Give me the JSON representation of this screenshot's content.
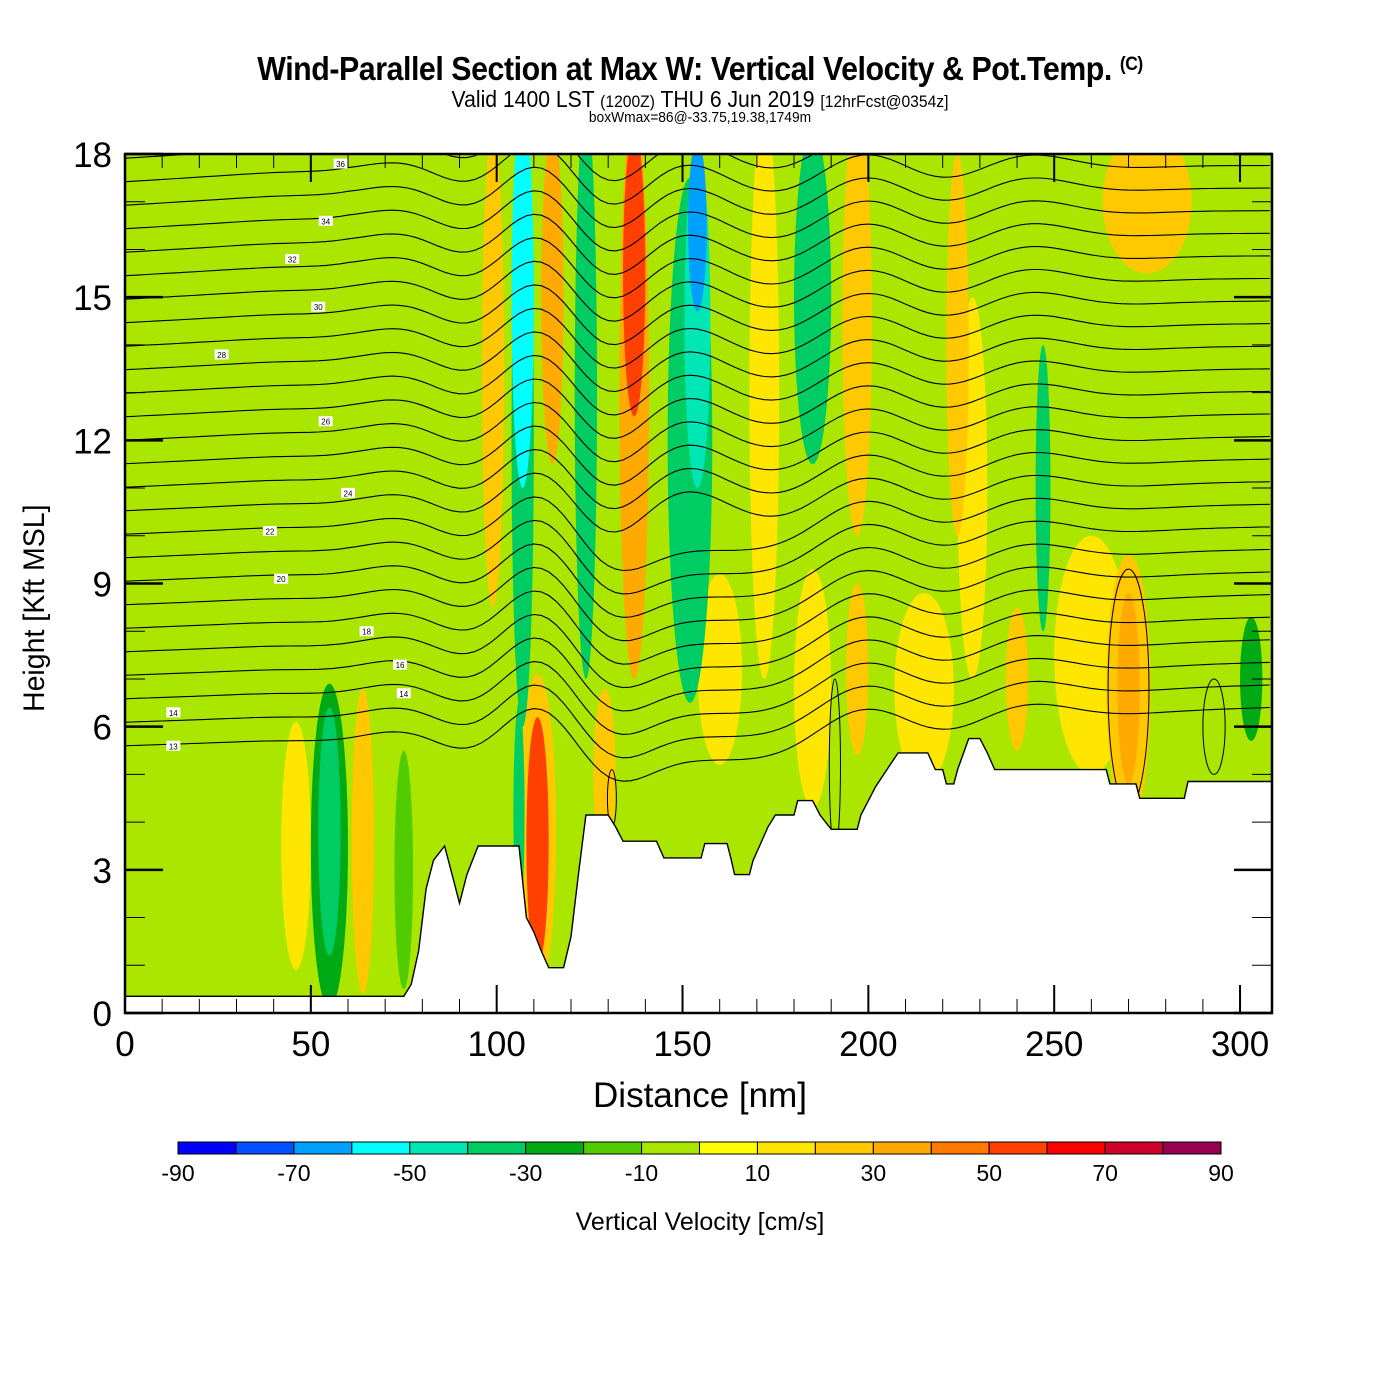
{
  "header": {
    "title": "Wind-Parallel Section at Max W: Vertical Velocity & Pot.Temp.",
    "copyright": "(C)",
    "valid_prefix": "Valid 1400 LST",
    "valid_utc": "(1200Z)",
    "valid_date": "THU 6 Jun 2019",
    "forecast": "[12hrFcst@0354z]",
    "box_info": "boxWmax=86@-33.75,19.38,1749m"
  },
  "chart_data": {
    "type": "heatmap",
    "title": "Wind-Parallel Section at Max W: Vertical Velocity & Pot.Temp.",
    "xlabel": "Distance [nm]",
    "ylabel": "Height [Kft MSL]",
    "xlim": [
      0,
      308.6
    ],
    "ylim": [
      0,
      18
    ],
    "x_ticks": [
      0,
      50,
      100,
      150,
      200,
      250,
      300
    ],
    "y_ticks": [
      0,
      3,
      6,
      9,
      12,
      15,
      18
    ],
    "colorbar": {
      "label": "Vertical Velocity [cm/s]",
      "ticks": [
        -90,
        -70,
        -50,
        -30,
        -10,
        10,
        30,
        50,
        70,
        90
      ],
      "bounds": [
        -90,
        -80,
        -70,
        -60,
        -50,
        -40,
        -30,
        -20,
        -10,
        0,
        10,
        20,
        30,
        40,
        50,
        60,
        70,
        80,
        90
      ],
      "colors": [
        "#0000ff",
        "#0050ff",
        "#00a0ff",
        "#00ffff",
        "#00e6b4",
        "#00cc64",
        "#00aa14",
        "#50cc00",
        "#aae600",
        "#ffff00",
        "#ffe600",
        "#ffc800",
        "#ffaa00",
        "#ff7800",
        "#ff4000",
        "#ff0000",
        "#cc0028",
        "#960050"
      ]
    },
    "background_w": -5,
    "w_features": [
      {
        "x": 55,
        "y": 3.8,
        "rx": 3,
        "ry": 2.6,
        "w": -35
      },
      {
        "x": 55,
        "y": 3.5,
        "rx": 5,
        "ry": 3.4,
        "w": -25
      },
      {
        "x": 64,
        "y": 3.6,
        "rx": 3,
        "ry": 3.2,
        "w": 25
      },
      {
        "x": 46,
        "y": 3.5,
        "rx": 4,
        "ry": 2.6,
        "w": 12
      },
      {
        "x": 75,
        "y": 3.0,
        "rx": 2.5,
        "ry": 2.5,
        "w": -15
      },
      {
        "x": 111,
        "y": 3.6,
        "rx": 3,
        "ry": 2.6,
        "w": 55
      },
      {
        "x": 111,
        "y": 3.8,
        "rx": 5,
        "ry": 3.3,
        "w": 25
      },
      {
        "x": 106,
        "y": 4.2,
        "rx": 1.5,
        "ry": 2.3,
        "w": -35
      },
      {
        "x": 129,
        "y": 5.0,
        "rx": 3,
        "ry": 1.8,
        "w": 25
      },
      {
        "x": 107,
        "y": 15.0,
        "rx": 3,
        "ry": 4.0,
        "w": -55
      },
      {
        "x": 107,
        "y": 12.0,
        "rx": 3,
        "ry": 6.0,
        "w": -35
      },
      {
        "x": 99,
        "y": 13.5,
        "rx": 3,
        "ry": 5.0,
        "w": 25
      },
      {
        "x": 115,
        "y": 15.0,
        "rx": 3,
        "ry": 3.5,
        "w": 35
      },
      {
        "x": 124,
        "y": 13.0,
        "rx": 3,
        "ry": 6.0,
        "w": -35
      },
      {
        "x": 137,
        "y": 15.5,
        "rx": 3,
        "ry": 3.0,
        "w": 55
      },
      {
        "x": 137,
        "y": 13.0,
        "rx": 4,
        "ry": 6.0,
        "w": 35
      },
      {
        "x": 154,
        "y": 16.5,
        "rx": 2.5,
        "ry": 1.8,
        "w": -65
      },
      {
        "x": 154,
        "y": 14.5,
        "rx": 3.5,
        "ry": 3.5,
        "w": -50
      },
      {
        "x": 152,
        "y": 12.0,
        "rx": 6,
        "ry": 5.5,
        "w": -35
      },
      {
        "x": 172,
        "y": 13.0,
        "rx": 4,
        "ry": 6.0,
        "w": 12
      },
      {
        "x": 185,
        "y": 15.0,
        "rx": 5,
        "ry": 3.5,
        "w": -35
      },
      {
        "x": 197,
        "y": 14.5,
        "rx": 4,
        "ry": 4.5,
        "w": 25
      },
      {
        "x": 224,
        "y": 14.0,
        "rx": 3,
        "ry": 4.0,
        "w": 25
      },
      {
        "x": 228,
        "y": 11.0,
        "rx": 4,
        "ry": 4.0,
        "w": 12
      },
      {
        "x": 247,
        "y": 11.0,
        "rx": 2,
        "ry": 3.0,
        "w": -35
      },
      {
        "x": 275,
        "y": 17.0,
        "rx": 12,
        "ry": 1.5,
        "w": 25
      },
      {
        "x": 270,
        "y": 6.8,
        "rx": 3,
        "ry": 2.0,
        "w": 35
      },
      {
        "x": 270,
        "y": 6.8,
        "rx": 6,
        "ry": 2.8,
        "w": 20
      },
      {
        "x": 240,
        "y": 7.0,
        "rx": 3,
        "ry": 1.5,
        "w": 20
      },
      {
        "x": 197,
        "y": 7.2,
        "rx": 3,
        "ry": 1.8,
        "w": 20
      },
      {
        "x": 303,
        "y": 7.0,
        "rx": 3,
        "ry": 1.3,
        "w": -25
      },
      {
        "x": 185,
        "y": 6.8,
        "rx": 5,
        "ry": 2.5,
        "w": 12
      },
      {
        "x": 215,
        "y": 6.8,
        "rx": 8,
        "ry": 2.0,
        "w": 12
      },
      {
        "x": 260,
        "y": 7.5,
        "rx": 10,
        "ry": 2.5,
        "w": 12
      },
      {
        "x": 160,
        "y": 7.2,
        "rx": 6,
        "ry": 2.0,
        "w": 12
      }
    ],
    "theta_contours": {
      "label_values": [
        36,
        34,
        32,
        30,
        28,
        26,
        24,
        22,
        20,
        18,
        16,
        14,
        14,
        13
      ],
      "levels": [
        13,
        14,
        15,
        16,
        17,
        18,
        19,
        20,
        21,
        22,
        23,
        24,
        25,
        26,
        27,
        28,
        29,
        30,
        31,
        32,
        33,
        34,
        35,
        36,
        37,
        38
      ]
    },
    "terrain": [
      [
        0,
        0.35
      ],
      [
        75,
        0.35
      ],
      [
        77,
        0.6
      ],
      [
        79,
        1.3
      ],
      [
        81,
        2.6
      ],
      [
        83,
        3.2
      ],
      [
        86,
        3.5
      ],
      [
        88,
        2.9
      ],
      [
        90,
        2.3
      ],
      [
        92,
        2.9
      ],
      [
        95,
        3.5
      ],
      [
        106,
        3.5
      ],
      [
        108,
        2.0
      ],
      [
        110,
        1.7
      ],
      [
        112,
        1.3
      ],
      [
        114,
        0.95
      ],
      [
        118,
        0.95
      ],
      [
        120,
        1.6
      ],
      [
        122,
        2.9
      ],
      [
        124,
        4.15
      ],
      [
        130,
        4.15
      ],
      [
        132,
        3.9
      ],
      [
        134,
        3.6
      ],
      [
        143,
        3.6
      ],
      [
        145,
        3.25
      ],
      [
        155,
        3.25
      ],
      [
        156,
        3.55
      ],
      [
        162,
        3.55
      ],
      [
        163,
        3.25
      ],
      [
        164,
        2.9
      ],
      [
        168,
        2.9
      ],
      [
        169,
        3.2
      ],
      [
        171,
        3.55
      ],
      [
        173,
        3.9
      ],
      [
        175,
        4.15
      ],
      [
        180,
        4.15
      ],
      [
        181,
        4.45
      ],
      [
        185,
        4.45
      ],
      [
        187,
        4.15
      ],
      [
        190,
        3.85
      ],
      [
        197,
        3.85
      ],
      [
        198,
        4.15
      ],
      [
        200,
        4.45
      ],
      [
        202,
        4.75
      ],
      [
        205,
        5.1
      ],
      [
        208,
        5.45
      ],
      [
        216,
        5.45
      ],
      [
        218,
        5.1
      ],
      [
        220,
        5.1
      ],
      [
        221,
        4.8
      ],
      [
        223,
        4.8
      ],
      [
        224,
        5.1
      ],
      [
        227,
        5.75
      ],
      [
        230,
        5.75
      ],
      [
        232,
        5.45
      ],
      [
        234,
        5.1
      ],
      [
        264,
        5.1
      ],
      [
        265,
        4.8
      ],
      [
        272,
        4.8
      ],
      [
        273,
        4.5
      ],
      [
        285,
        4.5
      ],
      [
        286,
        4.85
      ],
      [
        308.6,
        4.85
      ]
    ]
  }
}
